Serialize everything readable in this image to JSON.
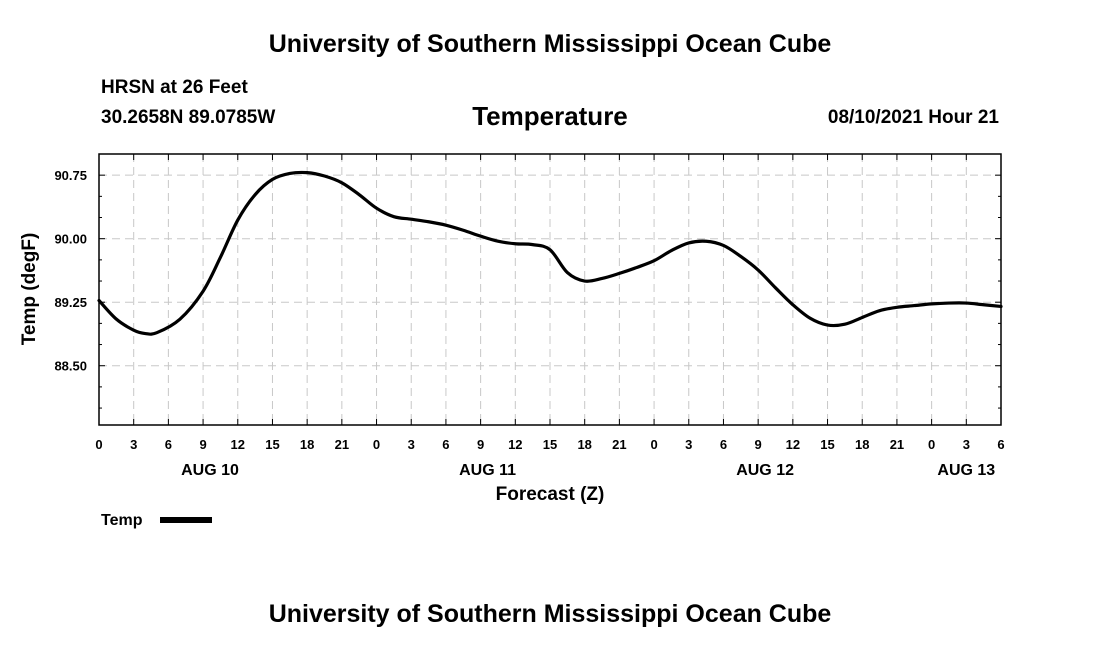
{
  "header": {
    "title": "University of Southern Mississippi Ocean Cube",
    "station_name": "HRSN at 26 Feet",
    "station_coords": "30.2658N  89.0785W",
    "chart_title": "Temperature",
    "date": "08/10/2021 Hour 21"
  },
  "footer": {
    "title": "University of Southern Mississippi Ocean Cube"
  },
  "colors": {
    "line": "#000000",
    "grid": "#c8c8c8",
    "background": "#ffffff"
  },
  "chart_data": {
    "type": "line",
    "title": "Temperature",
    "xlabel": "Forecast (Z)",
    "ylabel": "Temp (degF)",
    "xlim": [
      0,
      78
    ],
    "ylim": [
      87.8,
      91.0
    ],
    "yticks": [
      88.5,
      89.25,
      90.0,
      90.75
    ],
    "ytick_labels": [
      "88.50",
      "89.25",
      "90.00",
      "90.75"
    ],
    "xticks": [
      0,
      3,
      6,
      9,
      12,
      15,
      18,
      21,
      24,
      27,
      30,
      33,
      36,
      39,
      42,
      45,
      48,
      51,
      54,
      57,
      60,
      63,
      66,
      69,
      72,
      75,
      78
    ],
    "xtick_labels": [
      "0",
      "3",
      "6",
      "9",
      "12",
      "15",
      "18",
      "21",
      "0",
      "3",
      "6",
      "9",
      "12",
      "15",
      "18",
      "21",
      "0",
      "3",
      "6",
      "9",
      "12",
      "15",
      "18",
      "21",
      "0",
      "3",
      "6"
    ],
    "day_labels": [
      {
        "label": "AUG 10",
        "x": 9.6
      },
      {
        "label": "AUG 11",
        "x": 33.6
      },
      {
        "label": "AUG 12",
        "x": 57.6
      },
      {
        "label": "AUG 13",
        "x": 75.0
      }
    ],
    "grid": true,
    "legend": "bottom-left",
    "series": [
      {
        "name": "Temp",
        "x": [
          0,
          1.5,
          3,
          4,
          5,
          7,
          9,
          10.5,
          12,
          13.5,
          15,
          16.5,
          18,
          19.5,
          21,
          22.5,
          24,
          25.5,
          27,
          28.5,
          30,
          31.5,
          33,
          34.5,
          36,
          37.5,
          39,
          40.5,
          42,
          43.5,
          45,
          46.5,
          48,
          49.5,
          51,
          52.5,
          54,
          55.5,
          57,
          58.5,
          60,
          61.5,
          63,
          64.5,
          66,
          67.5,
          69,
          70.5,
          72,
          73.5,
          75,
          76.5,
          78
        ],
        "values": [
          89.27,
          89.05,
          88.92,
          88.88,
          88.89,
          89.05,
          89.38,
          89.78,
          90.22,
          90.52,
          90.7,
          90.77,
          90.78,
          90.74,
          90.66,
          90.52,
          90.36,
          90.26,
          90.23,
          90.2,
          90.16,
          90.1,
          90.03,
          89.97,
          89.94,
          89.93,
          89.87,
          89.6,
          89.5,
          89.53,
          89.59,
          89.66,
          89.74,
          89.86,
          89.95,
          89.97,
          89.92,
          89.79,
          89.63,
          89.42,
          89.22,
          89.06,
          88.98,
          88.99,
          89.07,
          89.15,
          89.19,
          89.21,
          89.23,
          89.24,
          89.24,
          89.22,
          89.2
        ]
      }
    ]
  }
}
